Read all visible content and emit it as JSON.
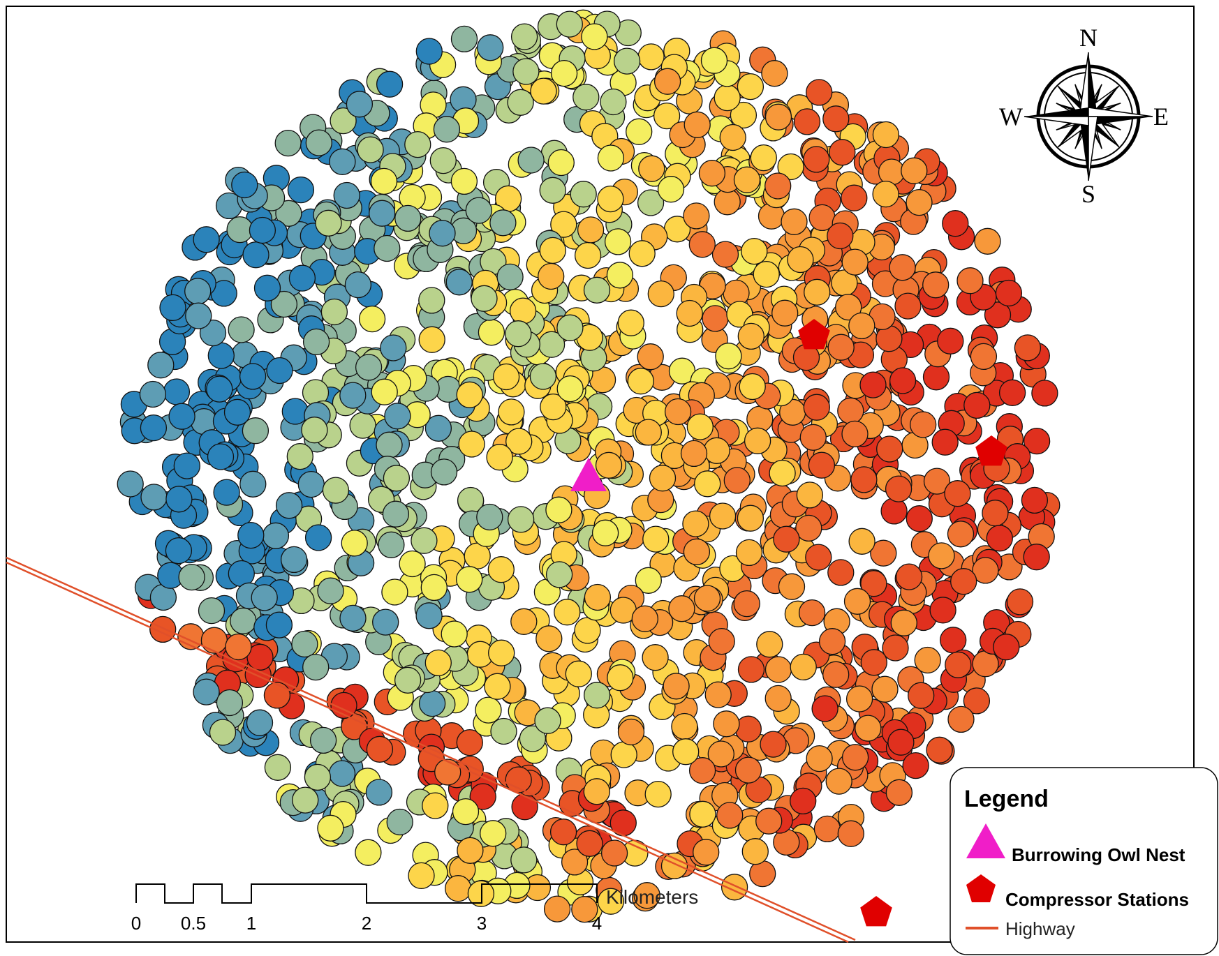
{
  "compass": {
    "n": "N",
    "s": "S",
    "e": "E",
    "w": "W"
  },
  "legend": {
    "title": "Legend",
    "items": [
      "Burrowing Owl Nest",
      "Compressor Stations",
      "Highway"
    ]
  },
  "scale_bar": {
    "labels": [
      "0",
      "0.5",
      "1",
      "2",
      "3",
      "4"
    ],
    "unit": "Kilometers"
  }
}
